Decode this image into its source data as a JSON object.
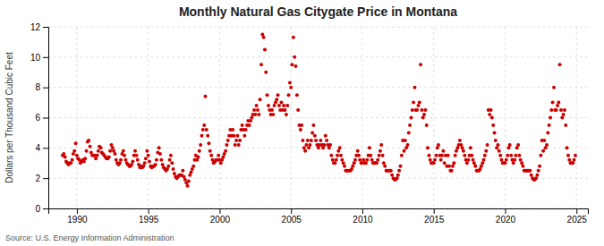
{
  "chart_data": {
    "type": "scatter",
    "title": "Monthly Natural Gas Citygate Price in Montana",
    "ylabel": "Dollars per Thousand Cubic Feet",
    "annotation": "Source: U.S. Energy Information Administration",
    "color": "#cc0000",
    "grid": true,
    "xlim": [
      1988.0,
      2025.8
    ],
    "ylim": [
      0,
      12
    ],
    "xticks": [
      1990,
      1995,
      2000,
      2005,
      2010,
      2015,
      2020,
      2025
    ],
    "yticks": [
      0,
      2,
      4,
      6,
      8,
      10,
      12
    ],
    "x": [
      1989.0,
      1989.08,
      1989.17,
      1989.25,
      1989.33,
      1989.42,
      1989.5,
      1989.58,
      1989.67,
      1989.75,
      1989.83,
      1989.92,
      1990.0,
      1990.08,
      1990.17,
      1990.25,
      1990.33,
      1990.42,
      1990.5,
      1990.58,
      1990.67,
      1990.75,
      1990.83,
      1990.92,
      1991.0,
      1991.08,
      1991.17,
      1991.25,
      1991.33,
      1991.42,
      1991.5,
      1991.58,
      1991.67,
      1991.75,
      1991.83,
      1991.92,
      1992.0,
      1992.08,
      1992.17,
      1992.25,
      1992.33,
      1992.42,
      1992.5,
      1992.58,
      1992.67,
      1992.75,
      1992.83,
      1992.92,
      1993.0,
      1993.08,
      1993.17,
      1993.25,
      1993.33,
      1993.42,
      1993.5,
      1993.58,
      1993.67,
      1993.75,
      1993.83,
      1993.92,
      1994.0,
      1994.08,
      1994.17,
      1994.25,
      1994.33,
      1994.42,
      1994.5,
      1994.58,
      1994.67,
      1994.75,
      1994.83,
      1994.92,
      1995.0,
      1995.08,
      1995.17,
      1995.25,
      1995.33,
      1995.42,
      1995.5,
      1995.58,
      1995.67,
      1995.75,
      1995.83,
      1995.92,
      1996.0,
      1996.08,
      1996.17,
      1996.25,
      1996.33,
      1996.42,
      1996.5,
      1996.58,
      1996.67,
      1996.75,
      1996.83,
      1996.92,
      1997.0,
      1997.08,
      1997.17,
      1997.25,
      1997.33,
      1997.42,
      1997.5,
      1997.58,
      1997.67,
      1997.75,
      1997.83,
      1997.92,
      1998.0,
      1998.08,
      1998.17,
      1998.25,
      1998.33,
      1998.42,
      1998.5,
      1998.58,
      1998.67,
      1998.75,
      1998.83,
      1998.92,
      1999.0,
      1999.08,
      1999.17,
      1999.25,
      1999.33,
      1999.42,
      1999.5,
      1999.58,
      1999.67,
      1999.75,
      1999.83,
      1999.92,
      2000.0,
      2000.08,
      2000.17,
      2000.25,
      2000.33,
      2000.42,
      2000.5,
      2000.58,
      2000.67,
      2000.75,
      2000.83,
      2000.92,
      2001.0,
      2001.08,
      2001.17,
      2001.25,
      2001.33,
      2001.42,
      2001.5,
      2001.58,
      2001.67,
      2001.75,
      2001.83,
      2001.92,
      2002.0,
      2002.08,
      2002.17,
      2002.25,
      2002.33,
      2002.42,
      2002.5,
      2002.58,
      2002.67,
      2002.75,
      2002.83,
      2002.92,
      2003.0,
      2003.08,
      2003.17,
      2003.25,
      2003.33,
      2003.42,
      2003.5,
      2003.58,
      2003.67,
      2003.75,
      2003.83,
      2003.92,
      2004.0,
      2004.08,
      2004.17,
      2004.25,
      2004.33,
      2004.42,
      2004.5,
      2004.58,
      2004.67,
      2004.75,
      2004.83,
      2004.92,
      2005.0,
      2005.08,
      2005.17,
      2005.25,
      2005.33,
      2005.42,
      2005.5,
      2005.58,
      2005.67,
      2005.75,
      2005.83,
      2005.92,
      2006.0,
      2006.08,
      2006.17,
      2006.25,
      2006.33,
      2006.42,
      2006.5,
      2006.58,
      2006.67,
      2006.75,
      2006.83,
      2006.92,
      2007.0,
      2007.08,
      2007.17,
      2007.25,
      2007.33,
      2007.42,
      2007.5,
      2007.58,
      2007.67,
      2007.75,
      2007.83,
      2007.92,
      2008.0,
      2008.08,
      2008.17,
      2008.25,
      2008.33,
      2008.42,
      2008.5,
      2008.58,
      2008.67,
      2008.75,
      2008.83,
      2008.92,
      2009.0,
      2009.08,
      2009.17,
      2009.25,
      2009.33,
      2009.42,
      2009.5,
      2009.58,
      2009.67,
      2009.75,
      2009.83,
      2009.92,
      2010.0,
      2010.08,
      2010.17,
      2010.25,
      2010.33,
      2010.42,
      2010.5,
      2010.58,
      2010.67,
      2010.75,
      2010.83,
      2010.92,
      2011.0,
      2011.08,
      2011.17,
      2011.25,
      2011.33,
      2011.42,
      2011.5,
      2011.58,
      2011.67,
      2011.75,
      2011.83,
      2011.92,
      2012.0,
      2012.08,
      2012.17,
      2012.25,
      2012.33,
      2012.42,
      2012.5,
      2012.58,
      2012.67,
      2012.75,
      2012.83,
      2012.92,
      2013.0,
      2013.08,
      2013.17,
      2013.25,
      2013.33,
      2013.42,
      2013.5,
      2013.58,
      2013.67,
      2013.75,
      2013.83,
      2013.92,
      2014.0,
      2014.08,
      2014.17,
      2014.25,
      2014.33,
      2014.42,
      2014.5,
      2014.58,
      2014.67,
      2014.75,
      2014.83,
      2014.92,
      2015.0,
      2015.08,
      2015.17,
      2015.25,
      2015.33,
      2015.42,
      2015.5,
      2015.58,
      2015.67,
      2015.75,
      2015.83,
      2015.92,
      2016.0,
      2016.08,
      2016.17,
      2016.25,
      2016.33,
      2016.42,
      2016.5,
      2016.58,
      2016.67,
      2016.75,
      2016.83,
      2016.92,
      2017.0,
      2017.08,
      2017.17,
      2017.25,
      2017.33,
      2017.42,
      2017.5,
      2017.58,
      2017.67,
      2017.75,
      2017.83,
      2017.92,
      2018.0,
      2018.08,
      2018.17,
      2018.25,
      2018.33,
      2018.42,
      2018.5,
      2018.58,
      2018.67,
      2018.75,
      2018.83,
      2018.92,
      2019.0,
      2019.08,
      2019.17,
      2019.25,
      2019.33,
      2019.42,
      2019.5,
      2019.58,
      2019.67,
      2019.75,
      2019.83,
      2019.92,
      2020.0,
      2020.08,
      2020.17,
      2020.25,
      2020.33,
      2020.42,
      2020.5,
      2020.58,
      2020.67,
      2020.75,
      2020.83,
      2020.92,
      2021.0,
      2021.08,
      2021.17,
      2021.25,
      2021.33,
      2021.42,
      2021.5,
      2021.58,
      2021.67,
      2021.75,
      2021.83,
      2021.92,
      2022.0,
      2022.08,
      2022.17,
      2022.25,
      2022.33,
      2022.42,
      2022.5,
      2022.58,
      2022.67,
      2022.75,
      2022.83,
      2022.92,
      2023.0,
      2023.08,
      2023.17,
      2023.25,
      2023.33,
      2023.42,
      2023.5,
      2023.58,
      2023.67,
      2023.75,
      2023.83,
      2023.92,
      2024.0,
      2024.08,
      2024.17,
      2024.25,
      2024.33,
      2024.42,
      2024.5,
      2024.58,
      2024.67,
      2024.75,
      2024.83,
      2024.92
    ],
    "values": [
      3.5,
      3.6,
      3.4,
      3.1,
      3.0,
      2.9,
      3.0,
      3.0,
      3.2,
      3.6,
      3.8,
      4.3,
      3.5,
      3.3,
      3.2,
      3.0,
      3.1,
      3.2,
      3.1,
      3.3,
      3.8,
      4.4,
      4.5,
      4.1,
      3.7,
      3.5,
      3.5,
      3.5,
      3.3,
      3.5,
      3.8,
      4.1,
      4.0,
      3.7,
      3.6,
      3.5,
      3.4,
      3.3,
      3.3,
      3.4,
      3.8,
      4.2,
      4.0,
      3.8,
      3.6,
      3.2,
      3.0,
      2.9,
      3.0,
      3.2,
      3.6,
      3.8,
      3.5,
      3.2,
      3.0,
      2.9,
      2.8,
      2.8,
      2.9,
      3.1,
      3.5,
      3.8,
      3.5,
      3.2,
      2.9,
      2.7,
      2.8,
      2.7,
      2.8,
      3.0,
      3.3,
      3.8,
      3.5,
      3.1,
      2.8,
      2.7,
      2.8,
      2.8,
      2.9,
      3.2,
      3.7,
      4.0,
      3.6,
      3.2,
      2.9,
      2.7,
      2.6,
      2.5,
      2.6,
      2.8,
      3.2,
      3.5,
      3.0,
      2.6,
      2.3,
      2.1,
      2.0,
      2.1,
      2.2,
      2.2,
      2.2,
      2.5,
      2.1,
      1.9,
      1.7,
      1.5,
      1.8,
      2.2,
      2.4,
      2.6,
      2.8,
      3.2,
      3.5,
      3.2,
      3.4,
      3.8,
      4.2,
      4.8,
      5.2,
      5.5,
      7.4,
      5.2,
      4.8,
      4.3,
      3.8,
      3.5,
      3.2,
      3.0,
      3.1,
      3.2,
      3.2,
      3.5,
      3.2,
      3.0,
      3.2,
      3.4,
      3.6,
      3.8,
      4.2,
      4.5,
      4.8,
      5.2,
      4.8,
      5.2,
      4.8,
      4.2,
      4.5,
      4.8,
      4.2,
      4.5,
      5.2,
      5.5,
      5.2,
      4.8,
      5.2,
      5.5,
      5.8,
      5.5,
      5.8,
      6.0,
      6.2,
      6.5,
      6.2,
      6.8,
      6.5,
      6.2,
      7.2,
      9.5,
      11.5,
      11.3,
      10.5,
      9.0,
      7.5,
      6.8,
      6.5,
      6.2,
      6.5,
      6.2,
      6.8,
      7.0,
      7.2,
      7.5,
      6.8,
      6.5,
      7.0,
      6.5,
      6.8,
      6.5,
      6.2,
      6.8,
      7.5,
      8.3,
      8.0,
      9.5,
      11.3,
      10.0,
      9.4,
      7.5,
      6.5,
      5.5,
      5.2,
      5.5,
      4.5,
      4.0,
      3.8,
      4.2,
      4.5,
      4.0,
      4.2,
      4.5,
      5.0,
      5.5,
      4.8,
      4.5,
      4.2,
      4.0,
      4.2,
      4.5,
      4.2,
      4.0,
      4.2,
      4.8,
      4.5,
      4.2,
      4.0,
      4.2,
      3.5,
      3.2,
      3.0,
      3.0,
      3.2,
      3.5,
      3.8,
      4.0,
      3.5,
      3.2,
      3.0,
      2.8,
      2.5,
      2.5,
      2.5,
      2.5,
      2.5,
      2.6,
      2.8,
      3.0,
      3.2,
      3.5,
      3.8,
      3.5,
      3.2,
      3.0,
      3.0,
      3.2,
      3.0,
      3.0,
      3.2,
      3.5,
      4.0,
      3.5,
      3.2,
      3.0,
      3.0,
      3.0,
      3.0,
      3.2,
      3.5,
      3.8,
      4.2,
      3.5,
      3.0,
      2.8,
      2.5,
      2.5,
      2.5,
      2.5,
      2.5,
      2.2,
      2.0,
      1.9,
      1.9,
      2.0,
      2.2,
      2.5,
      2.8,
      3.5,
      4.5,
      3.8,
      4.5,
      4.0,
      4.2,
      5.0,
      5.5,
      6.0,
      6.5,
      7.0,
      8.0,
      6.5,
      6.5,
      6.8,
      7.0,
      9.5,
      6.5,
      6.0,
      6.2,
      6.5,
      5.5,
      4.0,
      3.5,
      3.2,
      3.0,
      3.0,
      3.0,
      3.2,
      3.5,
      4.0,
      4.2,
      3.5,
      3.2,
      3.5,
      3.8,
      3.0,
      3.5,
      2.8,
      3.5,
      2.8,
      2.5,
      2.5,
      2.8,
      3.0,
      3.5,
      3.8,
      4.0,
      4.2,
      4.5,
      4.2,
      4.0,
      3.8,
      3.5,
      3.2,
      3.0,
      3.2,
      3.5,
      4.0,
      3.5,
      3.2,
      3.0,
      2.8,
      2.5,
      2.5,
      2.5,
      2.6,
      2.8,
      3.0,
      3.2,
      3.5,
      3.8,
      4.2,
      6.5,
      6.2,
      6.5,
      6.0,
      5.5,
      5.0,
      4.5,
      4.0,
      4.2,
      3.8,
      3.5,
      3.2,
      3.0,
      3.0,
      3.0,
      3.2,
      3.5,
      4.0,
      4.2,
      3.5,
      3.2,
      3.0,
      3.2,
      3.5,
      4.0,
      4.2,
      3.5,
      3.2,
      3.0,
      2.8,
      2.5,
      2.5,
      2.5,
      2.5,
      2.5,
      2.5,
      2.2,
      2.0,
      1.9,
      1.9,
      2.0,
      2.2,
      2.5,
      2.8,
      3.5,
      4.5,
      3.8,
      4.5,
      4.0,
      4.2,
      5.0,
      5.5,
      6.0,
      6.5,
      7.0,
      8.0,
      6.5,
      6.5,
      6.8,
      7.0,
      9.5,
      6.5,
      6.0,
      6.2,
      6.5,
      5.5,
      4.0,
      3.5,
      3.2,
      3.0,
      3.0,
      3.0,
      3.2,
      3.5
    ]
  }
}
